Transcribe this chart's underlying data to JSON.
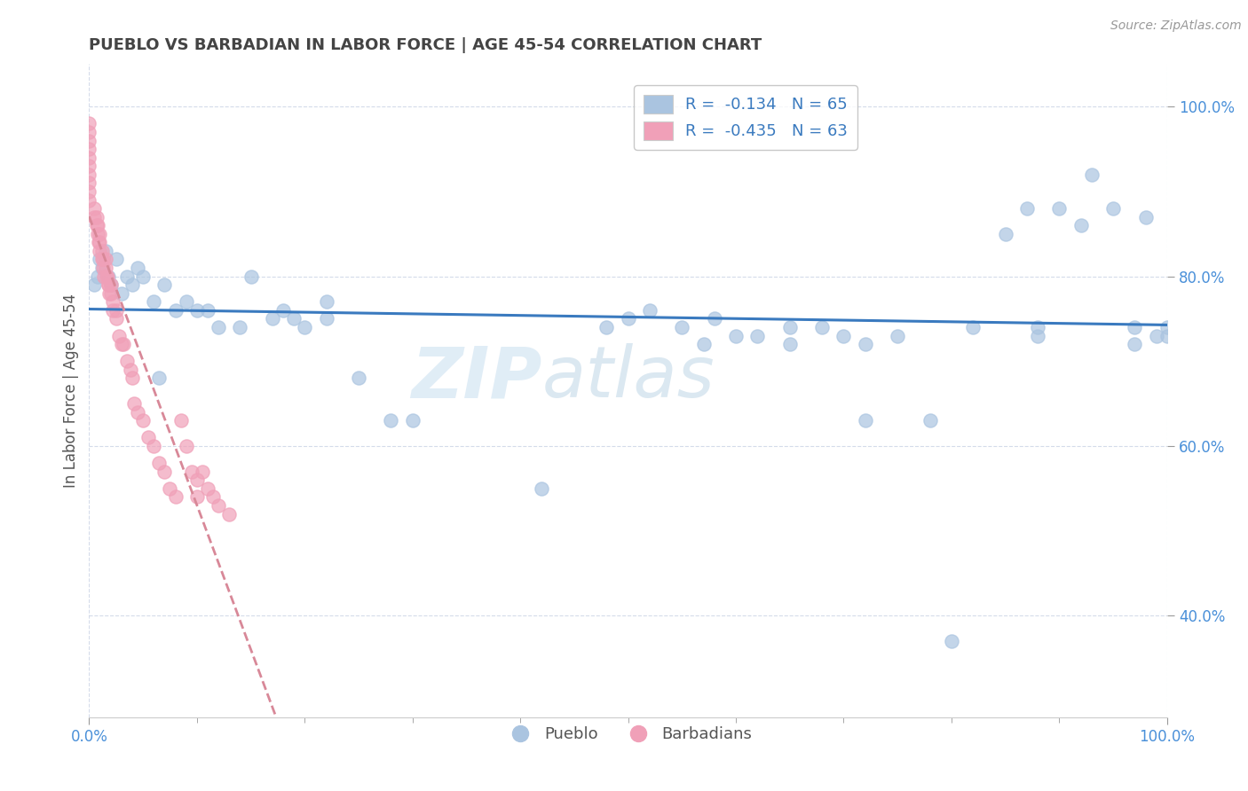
{
  "title": "PUEBLO VS BARBADIAN IN LABOR FORCE | AGE 45-54 CORRELATION CHART",
  "source_text": "Source: ZipAtlas.com",
  "ylabel": "In Labor Force | Age 45-54",
  "xlim": [
    0.0,
    1.0
  ],
  "ylim": [
    0.28,
    1.05
  ],
  "x_tick_labels": [
    "0.0%",
    "",
    "",
    "",
    "",
    "",
    "",
    "",
    "",
    "",
    "100.0%"
  ],
  "x_tick_positions": [
    0.0,
    0.1,
    0.2,
    0.3,
    0.4,
    0.5,
    0.6,
    0.7,
    0.8,
    0.9,
    1.0
  ],
  "y_tick_labels": [
    "40.0%",
    "60.0%",
    "80.0%",
    "100.0%"
  ],
  "y_tick_positions": [
    0.4,
    0.6,
    0.8,
    1.0
  ],
  "pueblo_color": "#aac4e0",
  "barbadian_color": "#f0a0b8",
  "trendline_pueblo_color": "#3a7abf",
  "trendline_barbadian_color": "#d88898",
  "pueblo_R": -0.134,
  "pueblo_N": 65,
  "barbadian_R": -0.435,
  "barbadian_N": 63,
  "watermark_line1": "ZIP",
  "watermark_line2": "atlas",
  "legend_pueblo_label": "Pueblo",
  "legend_barbadian_label": "Barbadians",
  "grid_color": "#d0d8e8",
  "background_color": "#ffffff",
  "title_color": "#444444",
  "axis_label_color": "#555555",
  "tick_color": "#4a90d9",
  "pueblo_x": [
    0.005,
    0.008,
    0.01,
    0.012,
    0.015,
    0.018,
    0.02,
    0.025,
    0.03,
    0.035,
    0.04,
    0.045,
    0.05,
    0.06,
    0.065,
    0.07,
    0.08,
    0.09,
    0.1,
    0.11,
    0.12,
    0.14,
    0.15,
    0.17,
    0.18,
    0.19,
    0.2,
    0.22,
    0.22,
    0.25,
    0.28,
    0.3,
    0.42,
    0.48,
    0.5,
    0.52,
    0.55,
    0.57,
    0.58,
    0.6,
    0.62,
    0.65,
    0.65,
    0.68,
    0.7,
    0.72,
    0.72,
    0.75,
    0.78,
    0.8,
    0.82,
    0.85,
    0.87,
    0.88,
    0.88,
    0.9,
    0.92,
    0.93,
    0.95,
    0.97,
    0.97,
    0.98,
    0.99,
    1.0,
    1.0
  ],
  "pueblo_y": [
    0.79,
    0.8,
    0.82,
    0.81,
    0.83,
    0.8,
    0.79,
    0.82,
    0.78,
    0.8,
    0.79,
    0.81,
    0.8,
    0.77,
    0.68,
    0.79,
    0.76,
    0.77,
    0.76,
    0.76,
    0.74,
    0.74,
    0.8,
    0.75,
    0.76,
    0.75,
    0.74,
    0.77,
    0.75,
    0.68,
    0.63,
    0.63,
    0.55,
    0.74,
    0.75,
    0.76,
    0.74,
    0.72,
    0.75,
    0.73,
    0.73,
    0.72,
    0.74,
    0.74,
    0.73,
    0.63,
    0.72,
    0.73,
    0.63,
    0.37,
    0.74,
    0.85,
    0.88,
    0.73,
    0.74,
    0.88,
    0.86,
    0.92,
    0.88,
    0.72,
    0.74,
    0.87,
    0.73,
    0.73,
    0.74
  ],
  "barbadian_x": [
    0.0,
    0.0,
    0.0,
    0.0,
    0.0,
    0.0,
    0.0,
    0.0,
    0.0,
    0.0,
    0.005,
    0.005,
    0.007,
    0.007,
    0.008,
    0.008,
    0.009,
    0.01,
    0.01,
    0.01,
    0.012,
    0.012,
    0.013,
    0.013,
    0.014,
    0.015,
    0.015,
    0.016,
    0.017,
    0.018,
    0.018,
    0.019,
    0.02,
    0.02,
    0.022,
    0.022,
    0.025,
    0.025,
    0.028,
    0.03,
    0.032,
    0.035,
    0.038,
    0.04,
    0.042,
    0.045,
    0.05,
    0.055,
    0.06,
    0.065,
    0.07,
    0.075,
    0.08,
    0.085,
    0.09,
    0.095,
    0.1,
    0.1,
    0.105,
    0.11,
    0.115,
    0.12,
    0.13
  ],
  "barbadian_y": [
    0.98,
    0.97,
    0.96,
    0.95,
    0.94,
    0.93,
    0.92,
    0.91,
    0.9,
    0.89,
    0.88,
    0.87,
    0.86,
    0.87,
    0.86,
    0.85,
    0.84,
    0.83,
    0.84,
    0.85,
    0.82,
    0.83,
    0.82,
    0.81,
    0.8,
    0.82,
    0.81,
    0.8,
    0.8,
    0.79,
    0.79,
    0.78,
    0.78,
    0.79,
    0.77,
    0.76,
    0.75,
    0.76,
    0.73,
    0.72,
    0.72,
    0.7,
    0.69,
    0.68,
    0.65,
    0.64,
    0.63,
    0.61,
    0.6,
    0.58,
    0.57,
    0.55,
    0.54,
    0.63,
    0.6,
    0.57,
    0.56,
    0.54,
    0.57,
    0.55,
    0.54,
    0.53,
    0.52
  ]
}
